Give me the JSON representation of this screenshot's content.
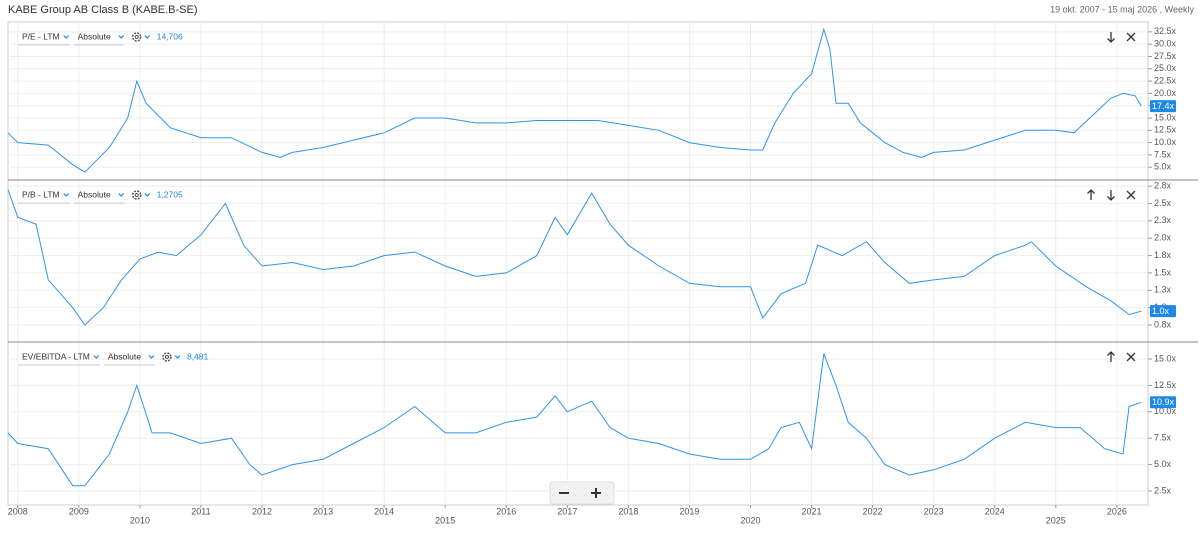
{
  "title": "KABE Group AB Class B (KABE.B-SE)",
  "range": "19 okt. 2007 - 15 maj 2026 , Weekly",
  "chart_data": [
    {
      "type": "line",
      "name": "P/E - LTM",
      "mode": "Absolute",
      "header_value": "14,706",
      "color": "#2f95ea",
      "x": [
        2007.84,
        2008.0,
        2008.5,
        2008.9,
        2009.1,
        2009.5,
        2009.8,
        2009.95,
        2010.1,
        2010.5,
        2011.0,
        2011.5,
        2012.0,
        2012.3,
        2012.5,
        2013.0,
        2013.5,
        2014.0,
        2014.5,
        2015.0,
        2015.5,
        2016.0,
        2016.5,
        2017.0,
        2017.5,
        2018.0,
        2018.5,
        2019.0,
        2019.5,
        2020.0,
        2020.2,
        2020.4,
        2020.7,
        2021.0,
        2021.2,
        2021.3,
        2021.4,
        2021.6,
        2021.8,
        2022.0,
        2022.2,
        2022.5,
        2022.8,
        2023.0,
        2023.5,
        2024.0,
        2024.5,
        2025.0,
        2025.3,
        2025.6,
        2025.9,
        2026.1,
        2026.3,
        2026.4
      ],
      "values": [
        12,
        10,
        9.5,
        5.5,
        4,
        9,
        15,
        22.5,
        18,
        13,
        11,
        11,
        8,
        7,
        8,
        9,
        10.5,
        12,
        15,
        15,
        14,
        14,
        14.5,
        14.5,
        14.5,
        13.5,
        12.5,
        10,
        9,
        8.5,
        8.5,
        14,
        20,
        24,
        33,
        29,
        18,
        18,
        14,
        12,
        10,
        8,
        7,
        8,
        8.5,
        10.5,
        12.5,
        12.5,
        12,
        15.5,
        19,
        20,
        19.5,
        17.4
      ],
      "xlim": [
        2007.84,
        2026.51
      ],
      "ylim": [
        2.4,
        34.1
      ],
      "yticks": [
        {
          "value": 5,
          "label": "5.0x"
        },
        {
          "value": 7.5,
          "label": "7.5x"
        },
        {
          "value": 10,
          "label": "10.0x"
        },
        {
          "value": 12.5,
          "label": "12.5x"
        },
        {
          "value": 15,
          "label": "15.0x"
        },
        {
          "value": 17.5,
          "label": "17.5x"
        },
        {
          "value": 20,
          "label": "20.0x"
        },
        {
          "value": 22.5,
          "label": "22.5x"
        },
        {
          "value": 25,
          "label": "25.0x"
        },
        {
          "value": 27.5,
          "label": "27.5x"
        },
        {
          "value": 30,
          "label": "30.0x"
        },
        {
          "value": 32.5,
          "label": "32.5x"
        }
      ],
      "current": {
        "value": 17.4,
        "label": "17.4x"
      }
    },
    {
      "type": "line",
      "name": "P/B - LTM",
      "mode": "Absolute",
      "header_value": "1,2705",
      "color": "#2f95ea",
      "x": [
        2007.84,
        2008.0,
        2008.3,
        2008.5,
        2008.9,
        2009.1,
        2009.4,
        2009.7,
        2010.0,
        2010.3,
        2010.6,
        2011.0,
        2011.4,
        2011.7,
        2012.0,
        2012.5,
        2013.0,
        2013.5,
        2014.0,
        2014.5,
        2015.0,
        2015.5,
        2016.0,
        2016.5,
        2016.8,
        2017.0,
        2017.4,
        2017.7,
        2018.0,
        2018.5,
        2019.0,
        2019.5,
        2020.0,
        2020.2,
        2020.5,
        2020.9,
        2021.1,
        2021.5,
        2021.9,
        2022.2,
        2022.6,
        2023.0,
        2023.5,
        2024.0,
        2024.5,
        2024.6,
        2025.0,
        2025.5,
        2025.9,
        2026.2,
        2026.4
      ],
      "values": [
        2.7,
        2.3,
        2.2,
        1.4,
        1.0,
        0.75,
        1.0,
        1.4,
        1.7,
        1.8,
        1.75,
        2.05,
        2.5,
        1.9,
        1.6,
        1.65,
        1.55,
        1.6,
        1.75,
        1.8,
        1.6,
        1.45,
        1.5,
        1.75,
        2.3,
        2.05,
        2.65,
        2.2,
        1.9,
        1.6,
        1.35,
        1.3,
        1.3,
        0.85,
        1.2,
        1.35,
        1.9,
        1.75,
        1.95,
        1.65,
        1.35,
        1.4,
        1.45,
        1.75,
        1.9,
        1.95,
        1.6,
        1.3,
        1.1,
        0.9,
        0.95
      ],
      "xlim": [
        2007.84,
        2026.51
      ],
      "ylim": [
        0.505,
        2.81
      ],
      "yticks": [
        {
          "value": 0.75,
          "label": "0.8x"
        },
        {
          "value": 1.0,
          "label": "1.0x"
        },
        {
          "value": 1.25,
          "label": "1.3x"
        },
        {
          "value": 1.5,
          "label": "1.5x"
        },
        {
          "value": 1.75,
          "label": "1.8x"
        },
        {
          "value": 2.0,
          "label": "2.0x"
        },
        {
          "value": 2.25,
          "label": "2.3x"
        },
        {
          "value": 2.5,
          "label": "2.5x"
        },
        {
          "value": 2.75,
          "label": "2.8x"
        }
      ],
      "current": {
        "value": 0.95,
        "label": "1.0x"
      }
    },
    {
      "type": "line",
      "name": "EV/EBITDA - LTM",
      "mode": "Absolute",
      "header_value": "8,481",
      "color": "#2f95ea",
      "x": [
        2007.84,
        2008.0,
        2008.5,
        2008.9,
        2009.1,
        2009.5,
        2009.8,
        2009.95,
        2010.2,
        2010.5,
        2011.0,
        2011.5,
        2011.8,
        2012.0,
        2012.5,
        2013.0,
        2013.5,
        2014.0,
        2014.5,
        2015.0,
        2015.5,
        2016.0,
        2016.5,
        2016.8,
        2017.0,
        2017.4,
        2017.7,
        2018.0,
        2018.5,
        2019.0,
        2019.5,
        2020.0,
        2020.3,
        2020.5,
        2020.8,
        2021.0,
        2021.2,
        2021.4,
        2021.6,
        2021.9,
        2022.2,
        2022.6,
        2023.0,
        2023.5,
        2024.0,
        2024.5,
        2025.0,
        2025.4,
        2025.8,
        2026.1,
        2026.2,
        2026.4
      ],
      "values": [
        8,
        7,
        6.5,
        3,
        3,
        6,
        10,
        12.5,
        8,
        8,
        7,
        7.5,
        5,
        4,
        5,
        5.5,
        7,
        8.5,
        10.5,
        8,
        8,
        9,
        9.5,
        11.5,
        10,
        11,
        8.5,
        7.5,
        7,
        6,
        5.5,
        5.5,
        6.5,
        8.5,
        9,
        6.5,
        15.5,
        12.5,
        9,
        7.5,
        5,
        4,
        4.5,
        5.5,
        7.5,
        9,
        8.5,
        8.5,
        6.5,
        6,
        10.5,
        10.9
      ],
      "xlim": [
        2007.84,
        2026.51
      ],
      "ylim": [
        1.17,
        16.42
      ],
      "yticks": [
        {
          "value": 2.5,
          "label": "2.5x"
        },
        {
          "value": 5,
          "label": "5.0x"
        },
        {
          "value": 7.5,
          "label": "7.5x"
        },
        {
          "value": 10,
          "label": "10.0x"
        },
        {
          "value": 12.5,
          "label": "12.5x"
        },
        {
          "value": 15,
          "label": "15.0x"
        }
      ],
      "current": {
        "value": 10.9,
        "label": "10.9x"
      },
      "xticks": [
        2008,
        2009,
        2010,
        2011,
        2012,
        2013,
        2014,
        2015,
        2016,
        2017,
        2018,
        2019,
        2020,
        2021,
        2022,
        2023,
        2024,
        2025,
        2026
      ]
    }
  ]
}
